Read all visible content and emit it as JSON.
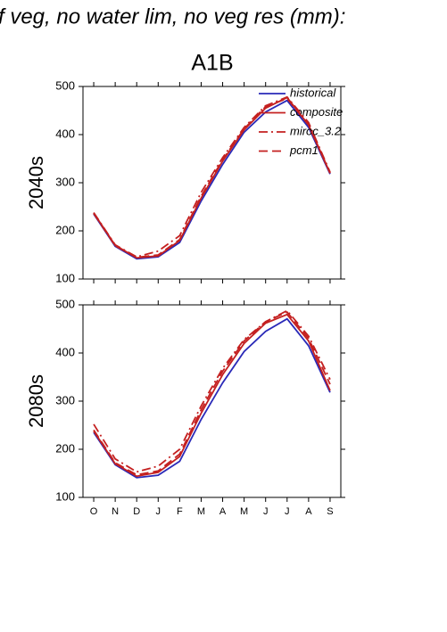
{
  "chart_data": [
    {
      "type": "line",
      "title": "f veg, no water lim, no veg res (mm):",
      "subtitle": "A1B",
      "ylabel": "2040s",
      "ylim": [
        100,
        500
      ],
      "yticks": [
        100,
        200,
        300,
        400,
        500
      ],
      "legend": "upper right",
      "series": [
        {
          "name": "historical",
          "color": "#2a2ab8",
          "dash": "solid",
          "values": [
            235,
            168,
            142,
            146,
            176,
            262,
            338,
            405,
            447,
            471,
            415,
            318
          ]
        },
        {
          "name": "composite",
          "color": "#c42020",
          "dash": "solid",
          "values": [
            237,
            170,
            144,
            148,
            180,
            268,
            345,
            410,
            455,
            477,
            420,
            320
          ]
        },
        {
          "name": "miroc_3.2",
          "color": "#c42020",
          "dash": "dashdot",
          "values": [
            238,
            171,
            146,
            158,
            190,
            280,
            352,
            415,
            460,
            478,
            425,
            322
          ]
        },
        {
          "name": "pcm1",
          "color": "#c42020",
          "dash": "dash",
          "values": [
            236,
            169,
            145,
            150,
            182,
            272,
            348,
            412,
            458,
            475,
            420,
            320
          ]
        }
      ]
    },
    {
      "type": "line",
      "ylabel": "2080s",
      "categories": [
        "O",
        "N",
        "D",
        "J",
        "F",
        "M",
        "A",
        "M",
        "J",
        "J",
        "A",
        "S"
      ],
      "ylim": [
        100,
        500
      ],
      "yticks": [
        100,
        200,
        300,
        400,
        500
      ],
      "series": [
        {
          "color": "#2a2ab8",
          "dash": "solid",
          "values": [
            235,
            168,
            141,
            146,
            175,
            262,
            338,
            403,
            445,
            471,
            415,
            318
          ]
        },
        {
          "color": "#c42020",
          "dash": "solid",
          "values": [
            238,
            170,
            144,
            152,
            185,
            275,
            355,
            420,
            462,
            480,
            425,
            322
          ]
        },
        {
          "color": "#c42020",
          "dash": "dashdot",
          "values": [
            252,
            180,
            153,
            165,
            200,
            290,
            368,
            428,
            465,
            488,
            435,
            345
          ]
        },
        {
          "color": "#c42020",
          "dash": "dash",
          "values": [
            240,
            172,
            147,
            155,
            190,
            282,
            362,
            425,
            465,
            485,
            430,
            335
          ]
        }
      ]
    }
  ]
}
